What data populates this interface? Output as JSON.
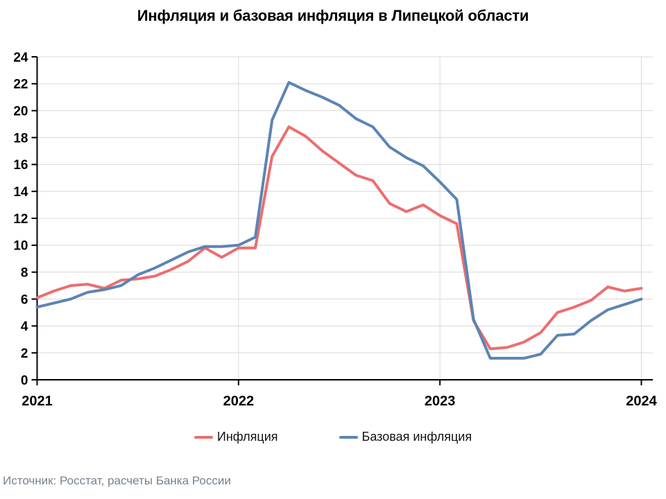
{
  "title": "Инфляция и базовая инфляция в Липецкой области",
  "source": "Источник: Росстат, расчеты Банка России",
  "legend": [
    {
      "label": "Инфляция",
      "color": "#ED6D6F"
    },
    {
      "label": "Базовая инфляция",
      "color": "#5B84B4"
    }
  ],
  "colors": {
    "grid": "#D8D8D8",
    "axis": "#000000",
    "tick_label": "#000000",
    "source_text": "#76828E"
  },
  "chart_data": {
    "type": "line",
    "x": [
      "2021-01",
      "2021-02",
      "2021-03",
      "2021-04",
      "2021-05",
      "2021-06",
      "2021-07",
      "2021-08",
      "2021-09",
      "2021-10",
      "2021-11",
      "2021-12",
      "2022-01",
      "2022-02",
      "2022-03",
      "2022-04",
      "2022-05",
      "2022-06",
      "2022-07",
      "2022-08",
      "2022-09",
      "2022-10",
      "2022-11",
      "2022-12",
      "2023-01",
      "2023-02",
      "2023-03",
      "2023-04",
      "2023-05",
      "2023-06",
      "2023-07",
      "2023-08",
      "2023-09",
      "2023-10",
      "2023-11",
      "2023-12",
      "2024-01"
    ],
    "series": [
      {
        "name": "Инфляция",
        "color": "#ED6D6F",
        "values": [
          6.1,
          6.6,
          7.0,
          7.1,
          6.8,
          7.4,
          7.5,
          7.7,
          8.2,
          8.8,
          9.8,
          9.1,
          9.8,
          9.8,
          16.6,
          18.8,
          18.1,
          17.0,
          16.1,
          15.2,
          14.8,
          13.1,
          12.5,
          13.0,
          12.2,
          11.6,
          4.4,
          2.3,
          2.4,
          2.8,
          3.5,
          5.0,
          5.4,
          5.9,
          6.9,
          6.6,
          6.8
        ]
      },
      {
        "name": "Базовая инфляция",
        "color": "#5B84B4",
        "values": [
          5.4,
          5.7,
          6.0,
          6.5,
          6.7,
          7.0,
          7.8,
          8.3,
          8.9,
          9.5,
          9.9,
          9.9,
          10.0,
          10.6,
          19.3,
          22.1,
          21.5,
          21.0,
          20.4,
          19.4,
          18.8,
          17.3,
          16.5,
          15.9,
          14.7,
          13.4,
          4.5,
          1.6,
          1.6,
          1.6,
          1.9,
          3.3,
          3.4,
          4.4,
          5.2,
          5.6,
          6.0
        ]
      }
    ],
    "xticks": [
      "2021",
      "2022",
      "2023",
      "2024"
    ],
    "ylim": [
      0,
      24
    ],
    "ytick_step": 2,
    "grid": true,
    "legend_position": "bottom"
  }
}
